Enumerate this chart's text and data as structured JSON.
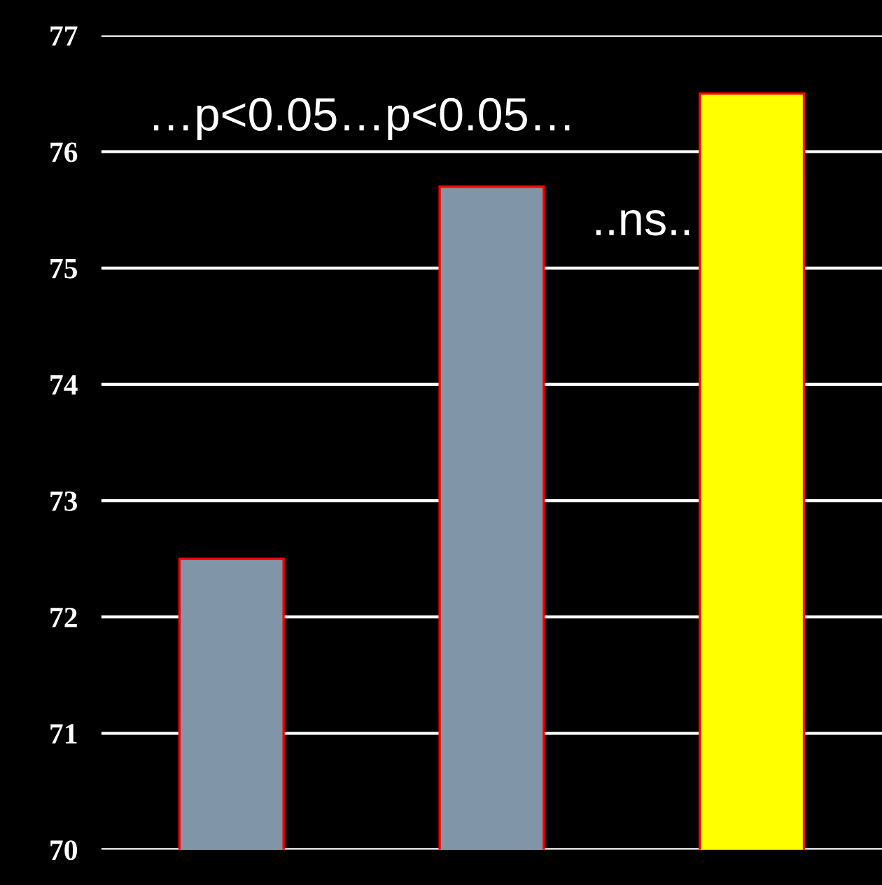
{
  "chart_data": {
    "type": "bar",
    "categories": [
      null,
      null,
      null
    ],
    "values": [
      72.5,
      75.7,
      76.5
    ],
    "colors": [
      "#8096a8",
      "#8096a8",
      "#ffff00"
    ],
    "ylim": [
      70,
      77
    ],
    "yticks": [
      70,
      71,
      72,
      73,
      74,
      75,
      76,
      77
    ],
    "grid": "y",
    "tick_labels": "y",
    "annotations": [
      "…p<0.05…p<0.05…",
      "..ns.."
    ]
  }
}
